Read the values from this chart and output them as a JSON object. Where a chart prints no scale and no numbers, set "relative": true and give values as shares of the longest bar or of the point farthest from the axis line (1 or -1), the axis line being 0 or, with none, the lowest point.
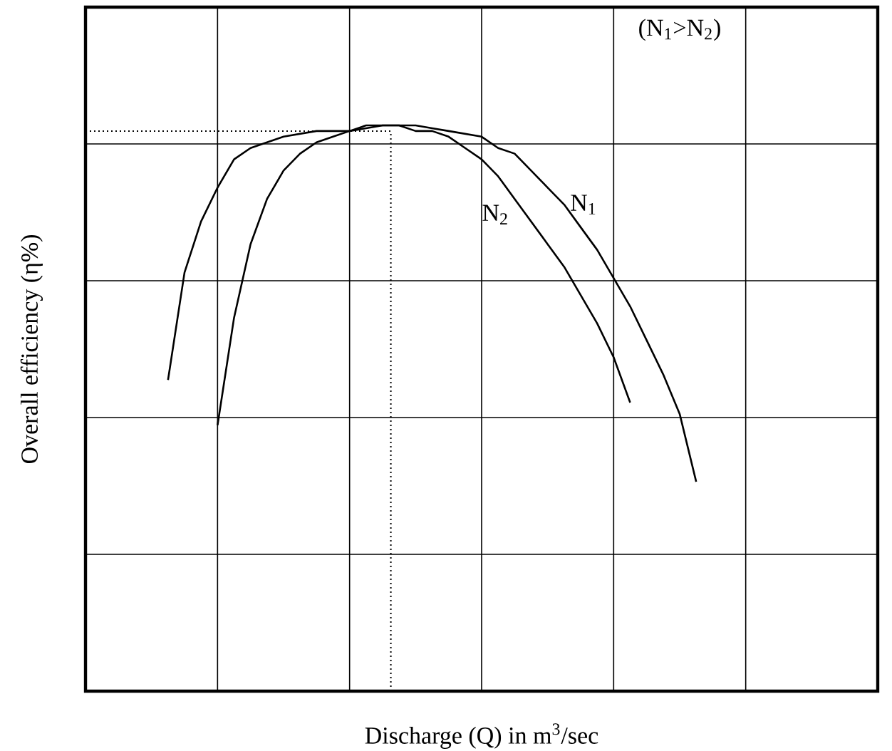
{
  "chart_data": {
    "type": "line",
    "relative": true,
    "xlabel": "Discharge (Q) in m$^{3}$/sec",
    "ylabel": "Overall efficiency (η%)",
    "categories": [
      null,
      null,
      null,
      null,
      null,
      null,
      null,
      null,
      null,
      null,
      null,
      null,
      null,
      null,
      null,
      null,
      null,
      null,
      null,
      null,
      null,
      null,
      null,
      null,
      null,
      null,
      null,
      null,
      null,
      null,
      null,
      null,
      null,
      null,
      null,
      null,
      null,
      null,
      null,
      null,
      null,
      null,
      null,
      null,
      null,
      null,
      null,
      null,
      null
    ],
    "series": [
      {
        "name": "N$_{1}$",
        "color": "#000000",
        "values": [
          null,
          null,
          null,
          null,
          null,
          0.55,
          0.74,
          0.83,
          0.89,
          0.94,
          0.96,
          0.97,
          0.98,
          0.985,
          0.99,
          0.99,
          0.99,
          1.0,
          1.0,
          1.0,
          1.0,
          0.995,
          0.99,
          0.985,
          0.98,
          0.96,
          0.95,
          0.92,
          0.89,
          0.86,
          0.82,
          0.78,
          0.73,
          0.68,
          0.62,
          0.56,
          0.49,
          0.37,
          null,
          null,
          null,
          null,
          null,
          null,
          null,
          null,
          null,
          null,
          null
        ]
      },
      {
        "name": "N$_{2}$",
        "color": "#000000",
        "values": [
          null,
          null,
          null,
          null,
          null,
          null,
          null,
          null,
          0.47,
          0.66,
          0.79,
          0.87,
          0.92,
          0.95,
          0.97,
          0.98,
          0.99,
          0.995,
          1.0,
          1.0,
          0.99,
          0.99,
          0.98,
          0.96,
          0.94,
          0.91,
          0.87,
          0.83,
          0.79,
          0.75,
          0.7,
          0.65,
          0.59,
          0.51,
          null,
          null,
          null,
          null,
          null,
          null,
          null,
          null,
          null,
          null,
          null,
          null,
          null,
          null,
          null
        ]
      }
    ],
    "annotations": [
      "(N$_{1}$>N$_{2}$)"
    ],
    "ref_lines": [
      {
        "axis": "y",
        "value": 0.99,
        "line_style": "dotted"
      }
    ],
    "grid": true
  }
}
